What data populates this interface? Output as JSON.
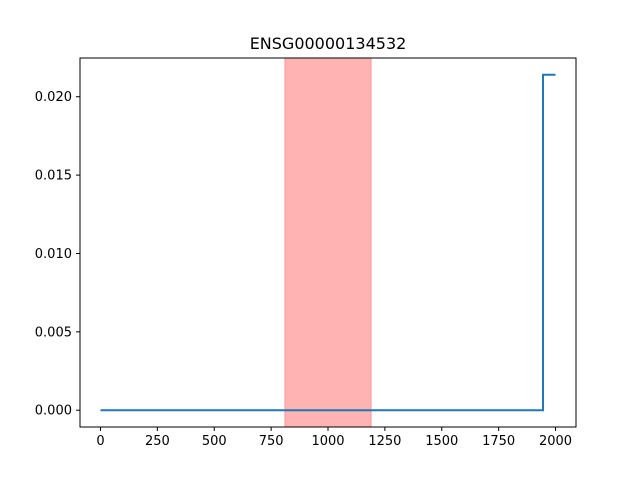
{
  "chart_data": {
    "type": "line",
    "title": "ENSG00000134532",
    "xlabel": "",
    "ylabel": "",
    "xlim": [
      -90,
      2090
    ],
    "ylim": [
      -0.00107,
      0.02247
    ],
    "xticks": [
      0,
      250,
      500,
      750,
      1000,
      1250,
      1500,
      1750,
      2000
    ],
    "xtick_labels": [
      "0",
      "250",
      "500",
      "750",
      "1000",
      "1250",
      "1500",
      "1750",
      "2000"
    ],
    "yticks": [
      0.0,
      0.005,
      0.01,
      0.015,
      0.02
    ],
    "ytick_labels": [
      "0.000",
      "0.005",
      "0.010",
      "0.015",
      "0.020"
    ],
    "grid": false,
    "highlight_region": {
      "x0": 810,
      "x1": 1190,
      "color": "#ff9999"
    },
    "series": [
      {
        "color": "#1f77b4",
        "step": true,
        "x": [
          0,
          1945,
          1945,
          2000
        ],
        "y": [
          0.0,
          0.0,
          0.0214,
          0.0214
        ]
      }
    ]
  }
}
